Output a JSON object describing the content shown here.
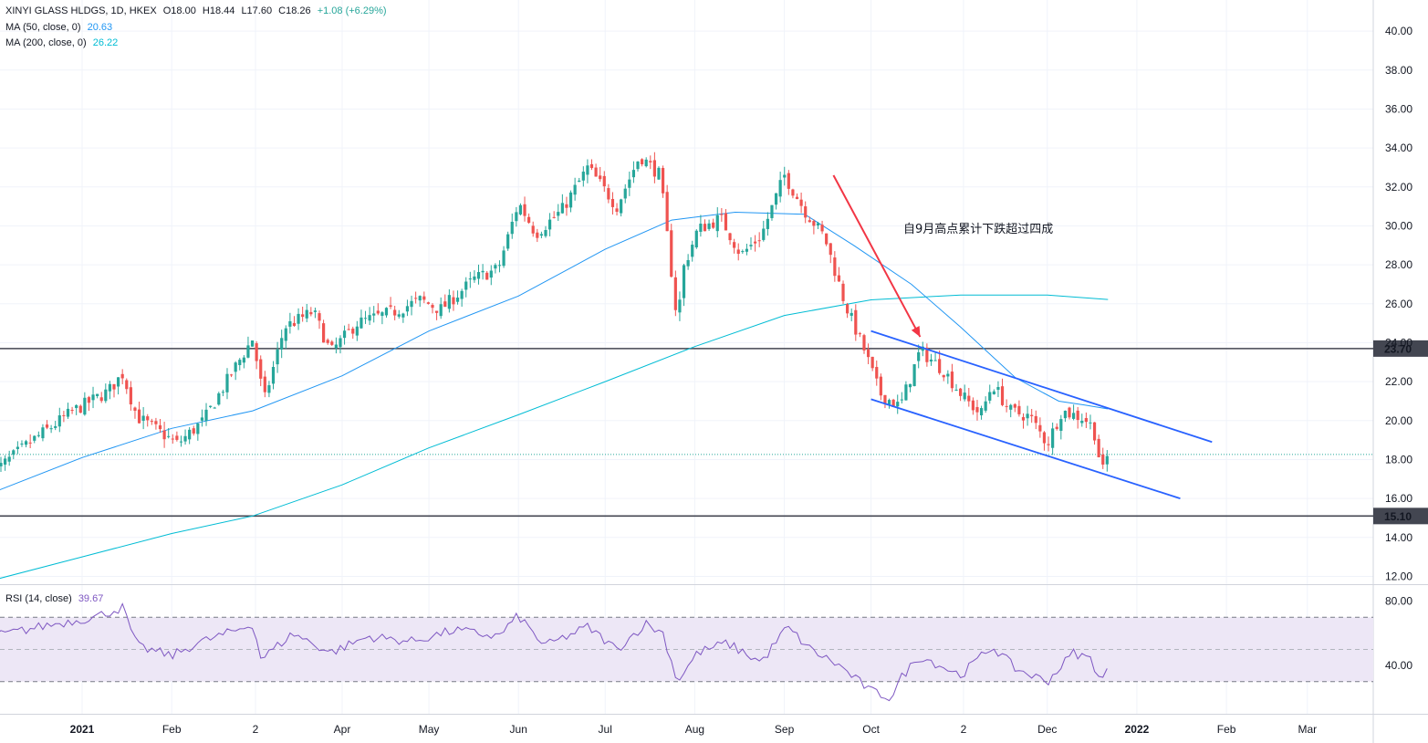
{
  "header": {
    "symbol": "XINYI GLASS HLDGS, 1D, HKEX",
    "open": "O18.00",
    "high": "H18.44",
    "low": "L17.60",
    "close": "C18.26",
    "change": "+1.08 (+6.29%)",
    "ma50_label": "MA (50, close, 0)",
    "ma50_value": "20.63",
    "ma200_label": "MA (200, close, 0)",
    "ma200_value": "26.22",
    "rsi_label": "RSI (14, close)",
    "rsi_value": "39.67"
  },
  "annotation": "自9月高点累计下跌超过四成",
  "colors": {
    "up": "#26a69a",
    "down": "#ef5350",
    "ma50": "#2196f3",
    "ma200": "#00bcd4",
    "channel": "#2962ff",
    "arrow": "#f23645",
    "rsi_line": "#7e57c2",
    "rsi_band": "#ede7f6"
  },
  "chart_data": {
    "type": "candlestick",
    "y_range": [
      11.6,
      41.6
    ],
    "y_ticks": [
      "12.00",
      "14.00",
      "16.00",
      "18.00",
      "20.00",
      "22.00",
      "24.00",
      "26.00",
      "28.00",
      "30.00",
      "32.00",
      "34.00",
      "36.00",
      "38.00",
      "40.00"
    ],
    "x_ticks": [
      {
        "label": "2021",
        "date": "2021-01-01",
        "bold": true
      },
      {
        "label": "Feb",
        "date": "2021-02-01"
      },
      {
        "label": "2",
        "date": "2021-03-02"
      },
      {
        "label": "Apr",
        "date": "2021-04-01"
      },
      {
        "label": "May",
        "date": "2021-05-01"
      },
      {
        "label": "Jun",
        "date": "2021-06-01"
      },
      {
        "label": "Jul",
        "date": "2021-07-01"
      },
      {
        "label": "Aug",
        "date": "2021-08-01"
      },
      {
        "label": "Sep",
        "date": "2021-09-01"
      },
      {
        "label": "Oct",
        "date": "2021-10-01"
      },
      {
        "label": "2",
        "date": "2021-11-02"
      },
      {
        "label": "Dec",
        "date": "2021-12-01"
      },
      {
        "label": "2022",
        "date": "2022-01-01",
        "bold": true
      },
      {
        "label": "Feb",
        "date": "2022-02-01"
      },
      {
        "label": "Mar",
        "date": "2022-03-01"
      }
    ],
    "close_path": [
      [
        "2020-12-01",
        17.3
      ],
      [
        "2020-12-15",
        19.0
      ],
      [
        "2020-12-29",
        20.5
      ],
      [
        "2021-01-10",
        21.5
      ],
      [
        "2021-01-15",
        22.4
      ],
      [
        "2021-01-20",
        20.2
      ],
      [
        "2021-01-28",
        19.4
      ],
      [
        "2021-02-03",
        18.8
      ],
      [
        "2021-02-12",
        20.0
      ],
      [
        "2021-02-22",
        22.5
      ],
      [
        "2021-03-01",
        24.2
      ],
      [
        "2021-03-05",
        21.0
      ],
      [
        "2021-03-12",
        24.8
      ],
      [
        "2021-03-22",
        25.6
      ],
      [
        "2021-03-28",
        23.5
      ],
      [
        "2021-04-06",
        25.0
      ],
      [
        "2021-04-19",
        25.6
      ],
      [
        "2021-04-28",
        26.2
      ],
      [
        "2021-05-05",
        25.7
      ],
      [
        "2021-05-17",
        27.3
      ],
      [
        "2021-05-25",
        27.8
      ],
      [
        "2021-06-01",
        31.2
      ],
      [
        "2021-06-07",
        29.6
      ],
      [
        "2021-06-16",
        30.8
      ],
      [
        "2021-06-25",
        33.0
      ],
      [
        "2021-07-05",
        31.0
      ],
      [
        "2021-07-13",
        33.6
      ],
      [
        "2021-07-20",
        32.6
      ],
      [
        "2021-07-26",
        25.0
      ],
      [
        "2021-07-28",
        27.8
      ],
      [
        "2021-08-02",
        29.8
      ],
      [
        "2021-08-10",
        30.4
      ],
      [
        "2021-08-17",
        28.5
      ],
      [
        "2021-08-24",
        29.5
      ],
      [
        "2021-09-01",
        32.6
      ],
      [
        "2021-09-08",
        30.8
      ],
      [
        "2021-09-15",
        29.4
      ],
      [
        "2021-09-22",
        26.0
      ],
      [
        "2021-09-29",
        23.5
      ],
      [
        "2021-10-04",
        21.4
      ],
      [
        "2021-10-11",
        20.7
      ],
      [
        "2021-10-18",
        23.6
      ],
      [
        "2021-10-26",
        22.6
      ],
      [
        "2021-11-02",
        21.2
      ],
      [
        "2021-11-08",
        20.3
      ],
      [
        "2021-11-12",
        21.9
      ],
      [
        "2021-11-18",
        20.5
      ],
      [
        "2021-11-25",
        20.2
      ],
      [
        "2021-12-01",
        18.8
      ],
      [
        "2021-12-06",
        20.5
      ],
      [
        "2021-12-14",
        20.1
      ],
      [
        "2021-12-17",
        19.6
      ],
      [
        "2021-12-20",
        17.3
      ],
      [
        "2021-12-22",
        18.26
      ]
    ],
    "ma50": [
      [
        "2020-12-01",
        16.3
      ],
      [
        "2021-01-01",
        18.1
      ],
      [
        "2021-02-01",
        19.6
      ],
      [
        "2021-03-01",
        20.5
      ],
      [
        "2021-04-01",
        22.3
      ],
      [
        "2021-05-01",
        24.6
      ],
      [
        "2021-06-01",
        26.4
      ],
      [
        "2021-07-01",
        28.8
      ],
      [
        "2021-07-24",
        30.3
      ],
      [
        "2021-08-15",
        30.7
      ],
      [
        "2021-09-08",
        30.6
      ],
      [
        "2021-09-25",
        29.0
      ],
      [
        "2021-10-15",
        27.0
      ],
      [
        "2021-11-01",
        24.8
      ],
      [
        "2021-11-20",
        22.2
      ],
      [
        "2021-12-05",
        21.0
      ],
      [
        "2021-12-14",
        20.8
      ],
      [
        "2021-12-22",
        20.6
      ]
    ],
    "ma200": [
      [
        "2020-12-01",
        11.8
      ],
      [
        "2021-01-01",
        13.0
      ],
      [
        "2021-02-01",
        14.2
      ],
      [
        "2021-03-01",
        15.1
      ],
      [
        "2021-04-01",
        16.7
      ],
      [
        "2021-05-01",
        18.6
      ],
      [
        "2021-06-01",
        20.3
      ],
      [
        "2021-07-01",
        22.0
      ],
      [
        "2021-08-01",
        23.8
      ],
      [
        "2021-09-01",
        25.4
      ],
      [
        "2021-10-01",
        26.2
      ],
      [
        "2021-11-01",
        26.45
      ],
      [
        "2021-12-01",
        26.45
      ],
      [
        "2021-12-22",
        26.22
      ]
    ],
    "horizontal_levels": [
      {
        "value": 23.7,
        "label": "23.70"
      },
      {
        "value": 15.1,
        "label": "15.10"
      }
    ],
    "last_price": 18.26,
    "channel_upper": [
      [
        "2021-10-01",
        24.6
      ],
      [
        "2022-01-27",
        18.9
      ]
    ],
    "channel_lower": [
      [
        "2021-10-01",
        21.1
      ],
      [
        "2022-01-16",
        16.0
      ]
    ],
    "arrow": {
      "from": [
        "2021-09-18",
        32.6
      ],
      "to": [
        "2021-10-18",
        24.3
      ]
    },
    "annotation_anchor": [
      "2021-10-03",
      30.0
    ],
    "rsi": {
      "y_range": [
        10,
        90
      ],
      "ticks": [
        "40.00",
        "80.00"
      ],
      "levels": [
        30,
        50,
        70
      ],
      "path": [
        [
          "2020-12-01",
          58
        ],
        [
          "2020-12-20",
          65
        ],
        [
          "2021-01-05",
          70
        ],
        [
          "2021-01-15",
          76
        ],
        [
          "2021-01-20",
          52
        ],
        [
          "2021-02-01",
          46
        ],
        [
          "2021-02-10",
          54
        ],
        [
          "2021-02-22",
          61
        ],
        [
          "2021-03-01",
          66
        ],
        [
          "2021-03-04",
          44
        ],
        [
          "2021-03-15",
          60
        ],
        [
          "2021-03-28",
          48
        ],
        [
          "2021-04-10",
          58
        ],
        [
          "2021-04-25",
          55
        ],
        [
          "2021-05-10",
          62
        ],
        [
          "2021-05-25",
          58
        ],
        [
          "2021-06-01",
          71
        ],
        [
          "2021-06-10",
          52
        ],
        [
          "2021-06-25",
          64
        ],
        [
          "2021-07-05",
          50
        ],
        [
          "2021-07-15",
          66
        ],
        [
          "2021-07-21",
          60
        ],
        [
          "2021-07-26",
          30
        ],
        [
          "2021-08-02",
          48
        ],
        [
          "2021-08-12",
          54
        ],
        [
          "2021-08-24",
          42
        ],
        [
          "2021-09-02",
          64
        ],
        [
          "2021-09-10",
          50
        ],
        [
          "2021-09-20",
          40
        ],
        [
          "2021-10-01",
          24
        ],
        [
          "2021-10-08",
          20
        ],
        [
          "2021-10-12",
          34
        ],
        [
          "2021-10-18",
          46
        ],
        [
          "2021-11-01",
          34
        ],
        [
          "2021-11-12",
          52
        ],
        [
          "2021-11-20",
          38
        ],
        [
          "2021-12-01",
          30
        ],
        [
          "2021-12-10",
          48
        ],
        [
          "2021-12-16",
          44
        ],
        [
          "2021-12-20",
          30
        ],
        [
          "2021-12-22",
          39.67
        ]
      ]
    }
  }
}
